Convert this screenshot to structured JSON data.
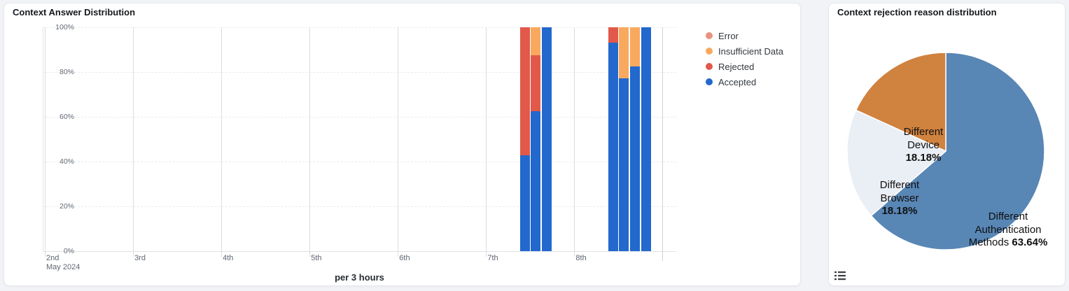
{
  "left_panel": {
    "title": "Context Answer Distribution",
    "footer_label": "per 3 hours",
    "legend": [
      {
        "series": "error",
        "label": "Error",
        "color": "#ea9280"
      },
      {
        "series": "insufficient_data",
        "label": "Insufficient Data",
        "color": "#f9a95e"
      },
      {
        "series": "rejected",
        "label": "Rejected",
        "color": "#e2584a"
      },
      {
        "series": "accepted",
        "label": "Accepted",
        "color": "#2268cd"
      }
    ]
  },
  "right_panel": {
    "title": "Context rejection reason distribution",
    "legend_toggle_icon": "list-icon",
    "labels": {
      "device": {
        "line1": "Different",
        "line2": "Device",
        "pct": "18.18%"
      },
      "browser": {
        "line1": "Different",
        "line2": "Browser",
        "pct": "18.18%"
      },
      "auth": {
        "line1": "Different",
        "line2": "Authentication",
        "line3_prefix": "Methods ",
        "pct": "63.64%"
      }
    }
  },
  "chart_data": [
    {
      "type": "bar",
      "stacked": true,
      "percent_stack": true,
      "title": "Context Answer Distribution",
      "xlabel": "per 3 hours",
      "ylabel": "",
      "ylim": [
        0,
        100
      ],
      "grid": true,
      "legend_position": "right",
      "y_ticks": [
        "0%",
        "20%",
        "40%",
        "60%",
        "80%",
        "100%"
      ],
      "x_ticks": [
        "2nd",
        "3rd",
        "4th",
        "5th",
        "6th",
        "7th",
        "8th"
      ],
      "x_start_sublabel": "May 2024",
      "series_colors": {
        "error": "#ea9280",
        "insufficient_data": "#f9a95e",
        "rejected": "#e2584a",
        "accepted": "#2268cd"
      },
      "bars": [
        {
          "time": "May 7 2024 09:00",
          "day_index": 5,
          "slot": 3,
          "stacks": [
            {
              "series": "accepted",
              "pct": 42.9
            },
            {
              "series": "rejected",
              "pct": 57.1
            }
          ]
        },
        {
          "time": "May 7 2024 12:00",
          "day_index": 5,
          "slot": 4,
          "stacks": [
            {
              "series": "accepted",
              "pct": 62.5
            },
            {
              "series": "rejected",
              "pct": 25.0
            },
            {
              "series": "insufficient_data",
              "pct": 12.5
            }
          ]
        },
        {
          "time": "May 7 2024 15:00",
          "day_index": 5,
          "slot": 5,
          "stacks": [
            {
              "series": "accepted",
              "pct": 100
            }
          ]
        },
        {
          "time": "May 8 2024 09:00",
          "day_index": 6,
          "slot": 3,
          "stacks": [
            {
              "series": "accepted",
              "pct": 93.1
            },
            {
              "series": "rejected",
              "pct": 6.9
            }
          ]
        },
        {
          "time": "May 8 2024 12:00",
          "day_index": 6,
          "slot": 4,
          "stacks": [
            {
              "series": "accepted",
              "pct": 77.3
            },
            {
              "series": "insufficient_data",
              "pct": 22.7
            }
          ]
        },
        {
          "time": "May 8 2024 15:00",
          "day_index": 6,
          "slot": 5,
          "stacks": [
            {
              "series": "accepted",
              "pct": 82.4
            },
            {
              "series": "insufficient_data",
              "pct": 17.6
            }
          ]
        },
        {
          "time": "May 8 2024 18:00",
          "day_index": 6,
          "slot": 6,
          "stacks": [
            {
              "series": "accepted",
              "pct": 100
            }
          ]
        }
      ]
    },
    {
      "type": "pie",
      "title": "Context rejection reason distribution",
      "start_angle_deg": 0,
      "direction": "clockwise",
      "slices": [
        {
          "label": "Different Authentication Methods",
          "value": 63.64,
          "color": "#5886b5"
        },
        {
          "label": "Different Browser",
          "value": 18.18,
          "color": "#eaeef5"
        },
        {
          "label": "Different Device",
          "value": 18.18,
          "color": "#d0823f"
        }
      ]
    }
  ]
}
